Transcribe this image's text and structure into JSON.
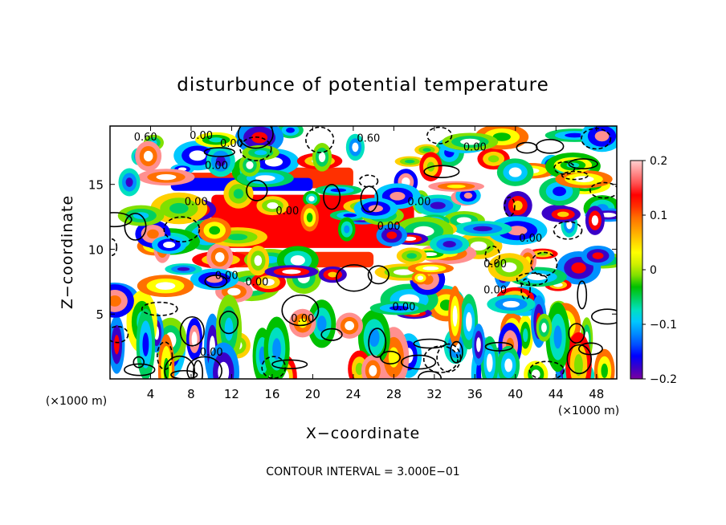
{
  "chart_data": {
    "type": "heatmap",
    "title": "disturbunce of potential temperature",
    "xlabel": "X−coordinate",
    "ylabel": "Z−coordinate",
    "x_unit_label": "(×1000 m)",
    "x_unit_label_right": "(×1000 m)",
    "footer": "CONTOUR INTERVAL = 3.000E−01",
    "xlim": [
      0,
      50
    ],
    "ylim": [
      0,
      19.5
    ],
    "x_ticks": [
      4,
      8,
      12,
      16,
      20,
      24,
      28,
      32,
      36,
      40,
      44,
      48
    ],
    "y_ticks": [
      5,
      10,
      15
    ],
    "colorbar": {
      "range": [
        -0.2,
        0.2
      ],
      "tick_values": [
        0.2,
        0.1,
        0,
        -0.1,
        -0.2
      ],
      "tick_labels": [
        "0.2",
        "0.1",
        "0",
        "−0.1",
        "−0.2"
      ],
      "colors": [
        "#7a00a0",
        "#3a00c8",
        "#0000ff",
        "#0050ff",
        "#0090ff",
        "#00c8ff",
        "#00e0c0",
        "#00d060",
        "#00c000",
        "#80e000",
        "#d0f000",
        "#ffff00",
        "#ffd000",
        "#ffa000",
        "#ff7000",
        "#ff3000",
        "#ff0000",
        "#ff5050",
        "#ff9090",
        "#ffd0d0"
      ]
    },
    "contour_labels": [
      {
        "x": 3.5,
        "y": 18.4,
        "text": "0.60"
      },
      {
        "x": 9.0,
        "y": 18.5,
        "text": "0.00"
      },
      {
        "x": 12.0,
        "y": 17.9,
        "text": "0.00"
      },
      {
        "x": 10.5,
        "y": 16.2,
        "text": "0.00"
      },
      {
        "x": 8.5,
        "y": 13.4,
        "text": "0.00"
      },
      {
        "x": 17.5,
        "y": 12.7,
        "text": "0.00"
      },
      {
        "x": 27.5,
        "y": 11.5,
        "text": "0.00"
      },
      {
        "x": 25.5,
        "y": 18.3,
        "text": "0.60"
      },
      {
        "x": 30.5,
        "y": 13.4,
        "text": "0.00"
      },
      {
        "x": 41.5,
        "y": 10.6,
        "text": "0.00"
      },
      {
        "x": 38.0,
        "y": 8.6,
        "text": "0.00"
      },
      {
        "x": 38.0,
        "y": 6.6,
        "text": "0.00"
      },
      {
        "x": 11.5,
        "y": 7.7,
        "text": "0.00"
      },
      {
        "x": 14.5,
        "y": 7.2,
        "text": "0.00"
      },
      {
        "x": 29.0,
        "y": 5.3,
        "text": "0.00"
      },
      {
        "x": 19.0,
        "y": 4.4,
        "text": "0.00"
      },
      {
        "x": 10.0,
        "y": 1.8,
        "text": "0.00"
      },
      {
        "x": 36.0,
        "y": 17.6,
        "text": "0.00"
      }
    ]
  }
}
